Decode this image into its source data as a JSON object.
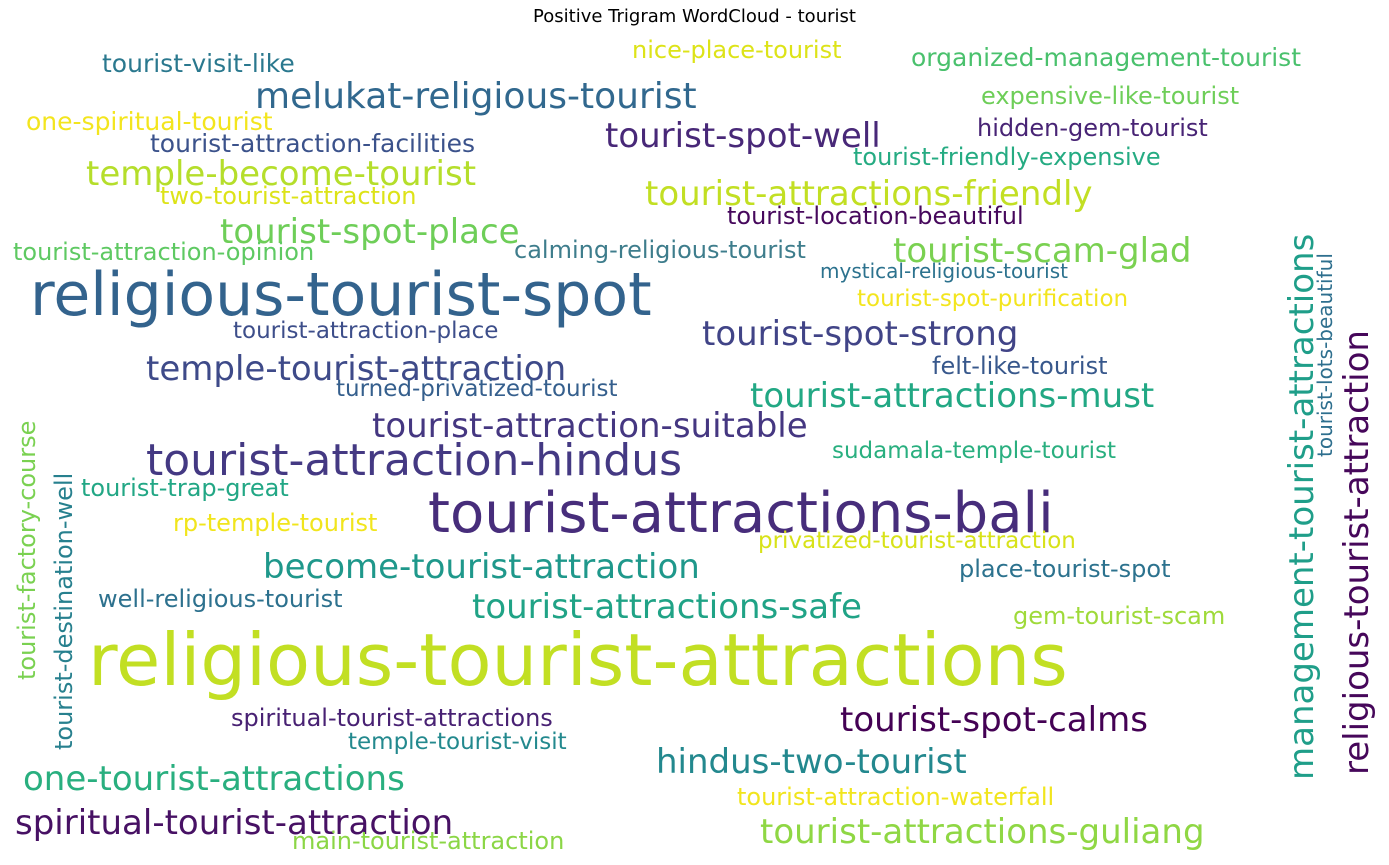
{
  "chart_data": {
    "type": "wordcloud",
    "title": "Positive Trigram WordCloud - tourist",
    "colormap": "viridis",
    "words": [
      {
        "text": "religious-tourist-attractions",
        "color": "#c2df23"
      },
      {
        "text": "religious-tourist-spot",
        "color": "#33638d"
      },
      {
        "text": "tourist-attractions-bali",
        "color": "#472d7b"
      },
      {
        "text": "tourist-attraction-hindus",
        "color": "#443983"
      },
      {
        "text": "melukat-religious-tourist",
        "color": "#31688e"
      },
      {
        "text": "tourist-spot-well",
        "color": "#482878"
      },
      {
        "text": "temple-become-tourist",
        "color": "#b5de2b"
      },
      {
        "text": "tourist-attractions-friendly",
        "color": "#c2df23"
      },
      {
        "text": "tourist-spot-place",
        "color": "#6ece58"
      },
      {
        "text": "tourist-scam-glad",
        "color": "#7ad151"
      },
      {
        "text": "tourist-spot-strong",
        "color": "#414487"
      },
      {
        "text": "temple-tourist-attraction",
        "color": "#3e4a89"
      },
      {
        "text": "tourist-attractions-must",
        "color": "#22a884"
      },
      {
        "text": "tourist-attraction-suitable",
        "color": "#453781"
      },
      {
        "text": "become-tourist-attraction",
        "color": "#1f988b"
      },
      {
        "text": "tourist-attractions-safe",
        "color": "#20a386"
      },
      {
        "text": "tourist-spot-calms",
        "color": "#440154"
      },
      {
        "text": "hindus-two-tourist",
        "color": "#23888e"
      },
      {
        "text": "one-tourist-attractions",
        "color": "#29af7f"
      },
      {
        "text": "spiritual-tourist-attraction",
        "color": "#471164"
      },
      {
        "text": "tourist-attractions-guliang",
        "color": "#8fd744"
      },
      {
        "text": "management-tourist-attractions",
        "color": "#1f9e89"
      },
      {
        "text": "religious-tourist-attraction",
        "color": "#46075a"
      },
      {
        "text": "tourist-visit-like",
        "color": "#2a788e"
      },
      {
        "text": "nice-place-tourist",
        "color": "#dde318"
      },
      {
        "text": "organized-management-tourist",
        "color": "#4ac16d"
      },
      {
        "text": "expensive-like-tourist",
        "color": "#6ece58"
      },
      {
        "text": "one-spiritual-tourist",
        "color": "#f3e51e"
      },
      {
        "text": "tourist-attraction-facilities",
        "color": "#3b528b"
      },
      {
        "text": "hidden-gem-tourist",
        "color": "#482475"
      },
      {
        "text": "tourist-friendly-expensive",
        "color": "#25ab82"
      },
      {
        "text": "two-tourist-attraction",
        "color": "#dde318"
      },
      {
        "text": "tourist-location-beautiful",
        "color": "#46085c"
      },
      {
        "text": "tourist-attraction-opinion",
        "color": "#5ec962"
      },
      {
        "text": "calming-religious-tourist",
        "color": "#3e7d8c"
      },
      {
        "text": "mystical-religious-tourist",
        "color": "#2c728e"
      },
      {
        "text": "tourist-spot-purification",
        "color": "#f3e51e"
      },
      {
        "text": "tourist-attraction-place",
        "color": "#3d4e8a"
      },
      {
        "text": "felt-like-tourist",
        "color": "#38588c"
      },
      {
        "text": "turned-privatized-tourist",
        "color": "#355f8d"
      },
      {
        "text": "sudamala-temple-tourist",
        "color": "#29af7f"
      },
      {
        "text": "tourist-trap-great",
        "color": "#22a785"
      },
      {
        "text": "rp-temple-tourist",
        "color": "#f1e51d"
      },
      {
        "text": "privatized-tourist-attraction",
        "color": "#d8e219"
      },
      {
        "text": "place-tourist-spot",
        "color": "#2c728e"
      },
      {
        "text": "well-religious-tourist",
        "color": "#2d718e"
      },
      {
        "text": "gem-tourist-scam",
        "color": "#9fda3a"
      },
      {
        "text": "spiritual-tourist-attractions",
        "color": "#482173"
      },
      {
        "text": "temple-tourist-visit",
        "color": "#23898e"
      },
      {
        "text": "tourist-attraction-waterfall",
        "color": "#f1e51d"
      },
      {
        "text": "main-tourist-attraction",
        "color": "#8bd646"
      },
      {
        "text": "tourist-factory-course",
        "color": "#7ad151"
      },
      {
        "text": "tourist-destination-well",
        "color": "#27808e"
      },
      {
        "text": "tourist-lots-beautiful",
        "color": "#2e6f8e"
      }
    ]
  }
}
